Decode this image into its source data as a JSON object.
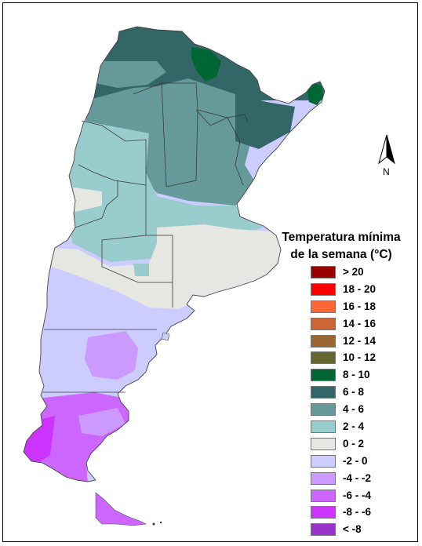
{
  "legend": {
    "title_line1": "Temperatura mínima",
    "title_line2": "de la semana (°C)",
    "items": [
      {
        "label": "> 20",
        "color": "#990000"
      },
      {
        "label": "18 - 20",
        "color": "#ff0000"
      },
      {
        "label": "16 - 18",
        "color": "#ff6633"
      },
      {
        "label": "14 - 16",
        "color": "#cc6633"
      },
      {
        "label": "12 - 14",
        "color": "#996633"
      },
      {
        "label": "10 - 12",
        "color": "#666633"
      },
      {
        "label": "8 - 10",
        "color": "#006633"
      },
      {
        "label": "6 - 8",
        "color": "#336666"
      },
      {
        "label": "4 - 6",
        "color": "#669999"
      },
      {
        "label": "2 - 4",
        "color": "#99cccc"
      },
      {
        "label": "0 - 2",
        "color": "#e6e6e3"
      },
      {
        "label": "-2 - 0",
        "color": "#ccccff"
      },
      {
        "label": "-4 - -2",
        "color": "#cc99ff"
      },
      {
        "label": "-6 - -4",
        "color": "#cc66ff"
      },
      {
        "label": "-8 - -6",
        "color": "#cc33ff"
      },
      {
        "label": "< -8",
        "color": "#9933cc"
      }
    ]
  },
  "north_arrow": {
    "label": "N",
    "icon": "north-arrow-icon"
  }
}
